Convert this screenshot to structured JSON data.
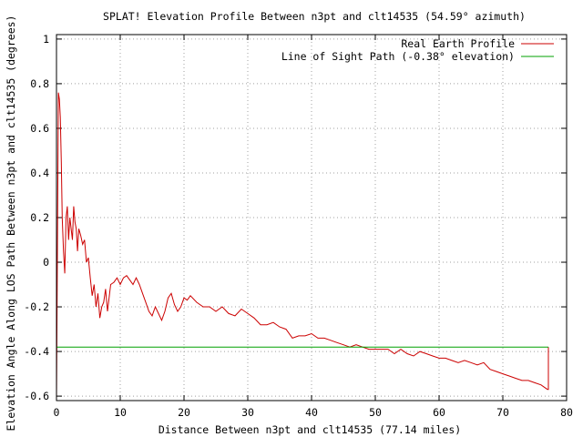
{
  "chart_data": {
    "type": "line",
    "title": "SPLAT! Elevation Profile Between n3pt and clt14535 (54.59° azimuth)",
    "xlabel": "Distance Between n3pt and clt14535 (77.14 miles)",
    "ylabel": "Elevation Angle Along LOS Path Between n3pt and clt14535 (degrees)",
    "xlim": [
      0,
      80
    ],
    "ylim": [
      -0.62,
      1.02
    ],
    "x_ticks": [
      "0",
      "10",
      "20",
      "30",
      "40",
      "50",
      "60",
      "70",
      "80"
    ],
    "y_ticks": [
      "-0.6",
      "-0.4",
      "-0.2",
      "0",
      "0.2",
      "0.4",
      "0.6",
      "0.8",
      "1"
    ],
    "grid": true,
    "legend_position": "top-right",
    "colors": {
      "profile": "#cc0000",
      "los": "#00a000",
      "grid": "#a0a0a0"
    },
    "series": [
      {
        "name": "Real Earth Profile",
        "x": [
          0,
          0.2,
          0.3,
          0.45,
          0.6,
          0.75,
          0.9,
          1.1,
          1.3,
          1.5,
          1.7,
          1.9,
          2.1,
          2.3,
          2.5,
          2.7,
          2.9,
          3.1,
          3.3,
          3.5,
          3.8,
          4.1,
          4.4,
          4.7,
          5.0,
          5.3,
          5.6,
          5.9,
          6.2,
          6.5,
          6.8,
          7.1,
          7.4,
          7.7,
          8.0,
          8.5,
          9.0,
          9.5,
          10,
          10.5,
          11,
          11.5,
          12,
          12.5,
          13,
          13.5,
          14,
          14.5,
          15,
          15.5,
          16,
          16.5,
          17,
          17.5,
          18,
          18.5,
          19,
          19.5,
          20,
          20.5,
          21,
          22,
          23,
          24,
          25,
          26,
          27,
          28,
          29,
          30,
          31,
          32,
          33,
          34,
          35,
          36,
          37,
          38,
          39,
          40,
          41,
          42,
          43,
          44,
          45,
          46,
          47,
          48,
          49,
          50,
          51,
          52,
          53,
          54,
          55,
          56,
          57,
          58,
          59,
          60,
          61,
          62,
          63,
          64,
          65,
          66,
          67,
          68,
          69,
          70,
          71,
          72,
          73,
          74,
          75,
          76,
          76.5,
          77,
          77.14
        ],
        "y": [
          -0.62,
          0.3,
          0.76,
          0.73,
          0.65,
          0.45,
          0.2,
          0.05,
          -0.05,
          0.2,
          0.25,
          0.1,
          0.2,
          0.15,
          0.1,
          0.25,
          0.18,
          0.15,
          0.05,
          0.15,
          0.12,
          0.08,
          0.1,
          0.0,
          0.02,
          -0.07,
          -0.15,
          -0.1,
          -0.2,
          -0.14,
          -0.25,
          -0.2,
          -0.18,
          -0.12,
          -0.22,
          -0.1,
          -0.09,
          -0.07,
          -0.1,
          -0.07,
          -0.06,
          -0.08,
          -0.1,
          -0.07,
          -0.1,
          -0.14,
          -0.18,
          -0.22,
          -0.24,
          -0.2,
          -0.23,
          -0.26,
          -0.22,
          -0.16,
          -0.14,
          -0.19,
          -0.22,
          -0.2,
          -0.16,
          -0.17,
          -0.15,
          -0.18,
          -0.2,
          -0.2,
          -0.22,
          -0.2,
          -0.23,
          -0.24,
          -0.21,
          -0.23,
          -0.25,
          -0.28,
          -0.28,
          -0.27,
          -0.29,
          -0.3,
          -0.34,
          -0.33,
          -0.33,
          -0.32,
          -0.34,
          -0.34,
          -0.35,
          -0.36,
          -0.37,
          -0.38,
          -0.37,
          -0.38,
          -0.39,
          -0.39,
          -0.39,
          -0.39,
          -0.41,
          -0.39,
          -0.41,
          -0.42,
          -0.4,
          -0.41,
          -0.42,
          -0.43,
          -0.43,
          -0.44,
          -0.45,
          -0.44,
          -0.45,
          -0.46,
          -0.45,
          -0.48,
          -0.49,
          -0.5,
          -0.51,
          -0.52,
          -0.53,
          -0.53,
          -0.54,
          -0.55,
          -0.56,
          -0.57,
          -0.57
        ]
      },
      {
        "name": "Line of Sight Path (-0.38° elevation)",
        "x": [
          0,
          77.14
        ],
        "y": [
          -0.38,
          -0.38
        ]
      }
    ]
  }
}
